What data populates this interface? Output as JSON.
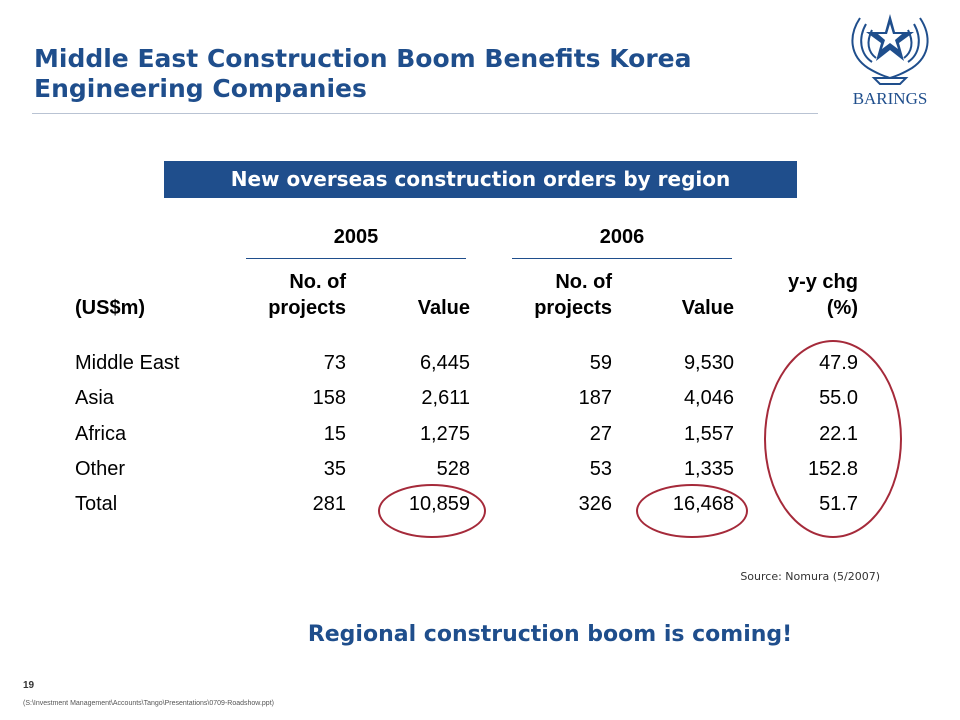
{
  "header": {
    "title_line1": "Middle East Construction Boom Benefits Korea",
    "title_line2": "Engineering Companies",
    "logo_text": "BARINGS"
  },
  "banner": "New overseas construction orders by region",
  "table": {
    "year_2005": "2005",
    "year_2006": "2006",
    "col_unit": "(US$m)",
    "col_projects_line1": "No. of",
    "col_projects_line2": "projects",
    "col_value": "Value",
    "col_chg_line1": "y-y chg",
    "col_chg_line2": "(%)",
    "rows": [
      {
        "region": "Middle East",
        "p2005": "73",
        "v2005": "6,445",
        "p2006": "59",
        "v2006": "9,530",
        "chg": "47.9"
      },
      {
        "region": "Asia",
        "p2005": "158",
        "v2005": "2,611",
        "p2006": "187",
        "v2006": "4,046",
        "chg": "55.0"
      },
      {
        "region": "Africa",
        "p2005": "15",
        "v2005": "1,275",
        "p2006": "27",
        "v2006": "1,557",
        "chg": "22.1"
      },
      {
        "region": "Other",
        "p2005": "35",
        "v2005": "528",
        "p2006": "53",
        "v2006": "1,335",
        "chg": "152.8"
      },
      {
        "region": "Total",
        "p2005": "281",
        "v2005": "10,859",
        "p2006": "326",
        "v2006": "16,468",
        "chg": "51.7"
      }
    ]
  },
  "source": "Source: Nomura (5/2007)",
  "tagline": "Regional construction boom is coming!",
  "footer": {
    "page_number": "19",
    "file_path": "(S:\\Investment Management\\Accounts\\Tango\\Presentations\\0709-Roadshow.ppt)"
  },
  "colors": {
    "accent": "#1f4e8c",
    "highlight": "#a52a3a"
  }
}
